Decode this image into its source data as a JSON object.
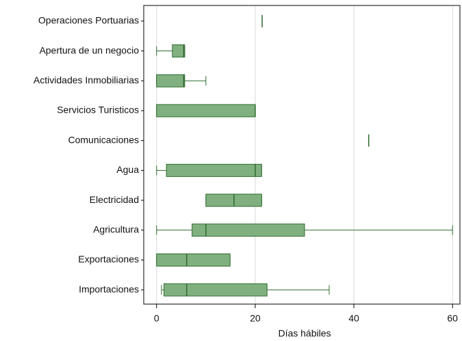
{
  "chart_data": {
    "type": "box",
    "xlabel": "Días hábiles",
    "categories": [
      "Operaciones Portuarias",
      "Apertura de un negocio",
      "Actividades Inmobiliarias",
      "Servicios Turisticos",
      "Comunicaciones",
      "Agua",
      "Electricidad",
      "Agricultura",
      "Exportaciones",
      "Importaciones"
    ],
    "boxes": [
      {
        "min": 21.4,
        "q1": 21.4,
        "median": 21.4,
        "q3": 21.4,
        "max": 21.4
      },
      {
        "min": 0,
        "q1": 3.2,
        "median": 5.5,
        "q3": 5.7,
        "max": 5.7
      },
      {
        "min": 0,
        "q1": 0,
        "median": 5.5,
        "q3": 5.7,
        "max": 10
      },
      {
        "min": 0,
        "q1": 0,
        "median": 20,
        "q3": 20,
        "max": 20
      },
      {
        "min": 43,
        "q1": 43,
        "median": 43,
        "q3": 43,
        "max": 43
      },
      {
        "min": 0,
        "q1": 2,
        "median": 20,
        "q3": 21.3,
        "max": 21.3
      },
      {
        "min": 10,
        "q1": 10,
        "median": 15.7,
        "q3": 21.3,
        "max": 21.3
      },
      {
        "min": 0,
        "q1": 7.2,
        "median": 10,
        "q3": 30,
        "max": 60
      },
      {
        "min": 0,
        "q1": 0,
        "median": 6.1,
        "q3": 14.9,
        "max": 14.9
      },
      {
        "min": 1,
        "q1": 1.5,
        "median": 6.1,
        "q3": 22.4,
        "max": 35
      }
    ],
    "color": "#80b080",
    "edge_color": "#2e6b2e",
    "xlim": [
      -2.6,
      61.5
    ],
    "xticks": [
      0,
      20,
      40,
      60
    ],
    "grid": true
  }
}
